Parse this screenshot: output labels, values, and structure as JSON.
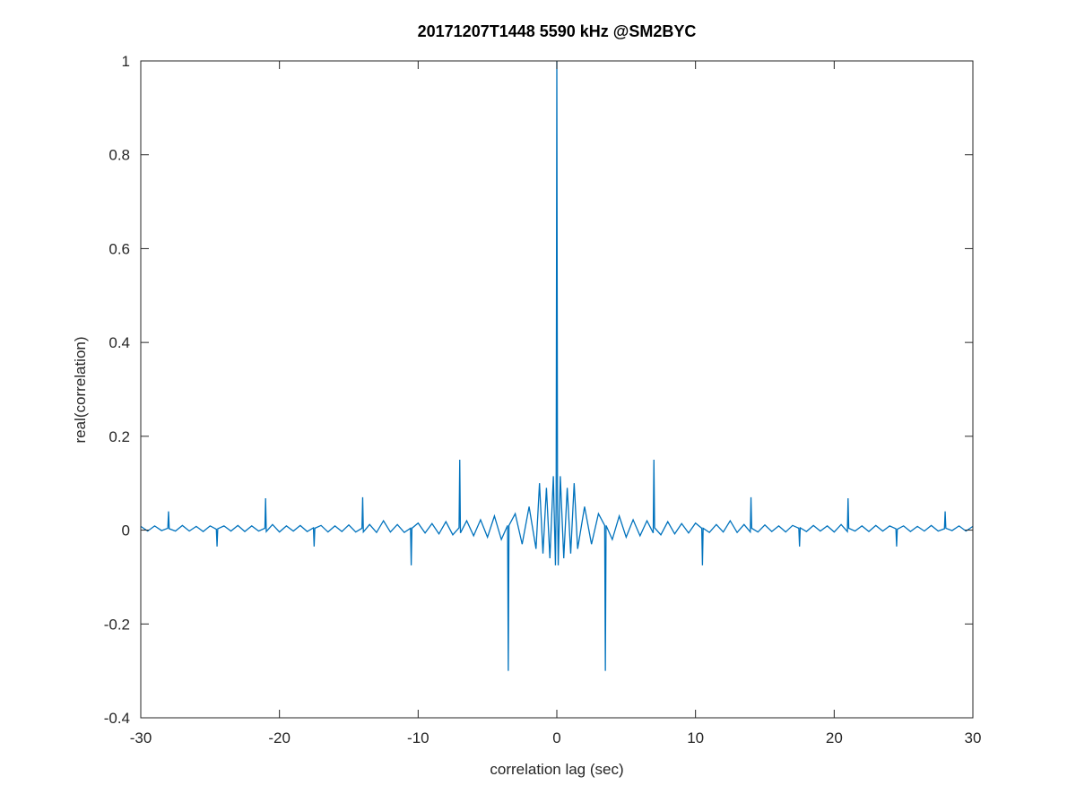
{
  "chart_data": {
    "type": "line",
    "title": "20171207T1448 5590 kHz @SM2BYC",
    "x_label": "correlation lag (sec)",
    "y_label": "real(correlation)",
    "color": "#0072bd",
    "xlim": [
      -30,
      30
    ],
    "xticks": [
      -30,
      -20,
      -10,
      0,
      10,
      20,
      30
    ],
    "ylim": [
      -0.4,
      1
    ],
    "yticks": [
      -0.4,
      -0.2,
      0,
      0.2,
      0.4,
      0.6,
      0.8,
      1
    ],
    "grid": false,
    "x": [
      -30,
      -29.5,
      -29,
      -28.5,
      -28.05,
      -28,
      -27.95,
      -27.5,
      -27,
      -26.5,
      -26,
      -25.5,
      -25,
      -24.55,
      -24.5,
      -24.45,
      -24,
      -23.5,
      -23,
      -22.5,
      -22,
      -21.5,
      -21.05,
      -21,
      -20.95,
      -20.5,
      -20,
      -19.5,
      -19,
      -18.5,
      -18,
      -17.55,
      -17.5,
      -17.45,
      -17,
      -16.5,
      -16,
      -15.5,
      -15,
      -14.5,
      -14.05,
      -14,
      -13.95,
      -13.5,
      -13,
      -12.5,
      -12,
      -11.5,
      -11,
      -10.55,
      -10.5,
      -10.45,
      -10,
      -9.5,
      -9,
      -8.5,
      -8,
      -7.5,
      -7.05,
      -7,
      -6.95,
      -6.5,
      -6,
      -5.5,
      -5,
      -4.5,
      -4,
      -3.55,
      -3.5,
      -3.45,
      -3,
      -2.5,
      -2,
      -1.5,
      -1.25,
      -1,
      -0.75,
      -0.5,
      -0.25,
      -0.1,
      -0.05,
      0,
      0.05,
      0.1,
      0.25,
      0.5,
      0.75,
      1,
      1.25,
      1.5,
      2,
      2.5,
      3,
      3.45,
      3.5,
      3.55,
      4,
      4.5,
      5,
      5.5,
      6,
      6.5,
      6.95,
      7,
      7.05,
      7.5,
      8,
      8.5,
      9,
      9.5,
      10,
      10.45,
      10.5,
      10.55,
      11,
      11.5,
      12,
      12.5,
      13,
      13.5,
      13.95,
      14,
      14.05,
      14.5,
      15,
      15.5,
      16,
      16.5,
      17,
      17.45,
      17.5,
      17.55,
      18,
      18.5,
      19,
      19.5,
      20,
      20.5,
      20.95,
      21,
      21.05,
      21.5,
      22,
      22.5,
      23,
      23.5,
      24,
      24.45,
      24.5,
      24.55,
      25,
      25.5,
      26,
      26.5,
      27,
      27.5,
      27.95,
      28,
      28.05,
      28.5,
      29,
      29.5,
      30
    ],
    "values": [
      0.008,
      -0.002,
      0.009,
      -0.001,
      0.004,
      0.04,
      0.003,
      -0.002,
      0.01,
      -0.002,
      0.008,
      -0.003,
      0.009,
      0.002,
      -0.035,
      0.003,
      0.009,
      -0.002,
      0.01,
      -0.003,
      0.009,
      -0.002,
      0.004,
      0.068,
      -0.003,
      0.012,
      -0.004,
      0.009,
      -0.002,
      0.01,
      -0.003,
      0.005,
      -0.035,
      0.004,
      0.01,
      -0.004,
      0.009,
      -0.003,
      0.011,
      -0.004,
      0.004,
      0.07,
      -0.004,
      0.012,
      -0.005,
      0.02,
      -0.004,
      0.012,
      -0.005,
      0.004,
      -0.075,
      0.004,
      0.015,
      -0.006,
      0.014,
      -0.008,
      0.018,
      -0.01,
      0.005,
      0.15,
      -0.006,
      0.02,
      -0.012,
      0.022,
      -0.015,
      0.03,
      -0.02,
      0.01,
      -0.3,
      0.01,
      0.035,
      -0.03,
      0.05,
      -0.04,
      0.1,
      -0.05,
      0.09,
      -0.06,
      0.115,
      -0.075,
      0.06,
      1,
      0.06,
      -0.075,
      0.115,
      -0.06,
      0.09,
      -0.05,
      0.1,
      -0.04,
      0.05,
      -0.03,
      0.035,
      0.01,
      -0.3,
      0.01,
      -0.02,
      0.03,
      -0.015,
      0.022,
      -0.012,
      0.02,
      -0.006,
      0.15,
      0.005,
      -0.01,
      0.018,
      -0.008,
      0.014,
      -0.006,
      0.015,
      0.004,
      -0.075,
      0.004,
      -0.005,
      0.012,
      -0.004,
      0.02,
      -0.005,
      0.012,
      -0.004,
      0.07,
      0.004,
      -0.004,
      0.011,
      -0.003,
      0.009,
      -0.004,
      0.01,
      0.004,
      -0.035,
      0.005,
      -0.003,
      0.01,
      -0.002,
      0.009,
      -0.004,
      0.012,
      -0.003,
      0.068,
      0.004,
      -0.002,
      0.009,
      -0.003,
      0.01,
      -0.002,
      0.009,
      0.003,
      -0.035,
      0.002,
      0.009,
      -0.003,
      0.008,
      -0.002,
      0.01,
      -0.002,
      0.003,
      0.04,
      0.004,
      -0.001,
      0.009,
      -0.002,
      0.008
    ]
  }
}
